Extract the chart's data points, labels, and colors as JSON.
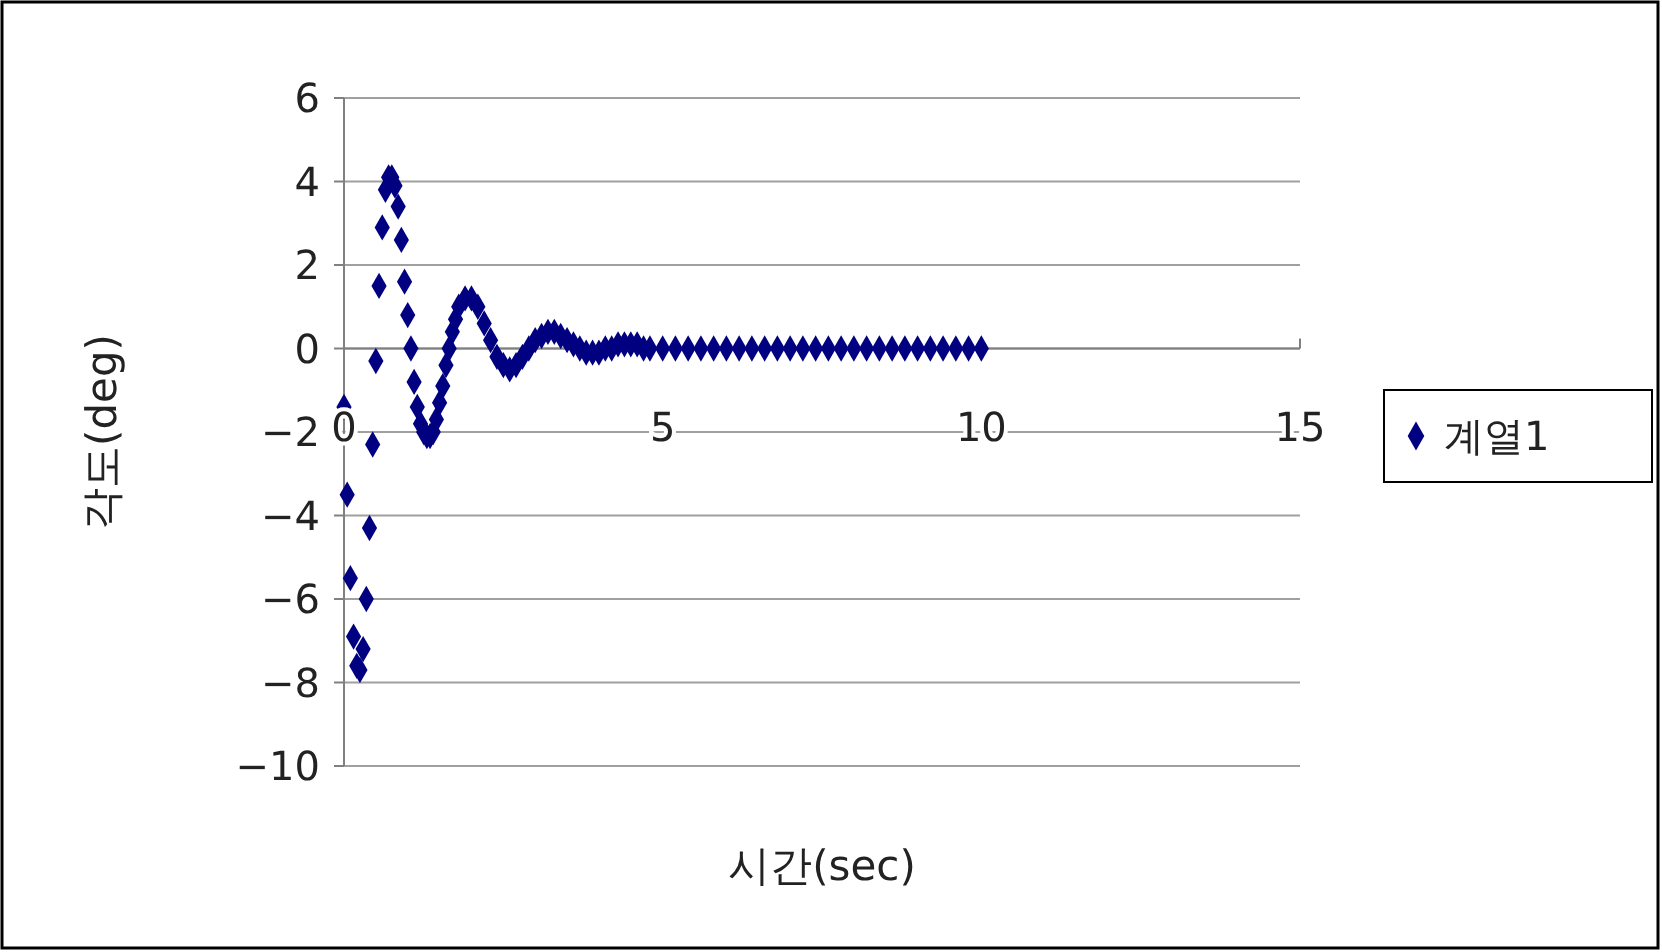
{
  "chart_data": {
    "type": "scatter",
    "xlabel": "시간(sec)",
    "ylabel": "각도(deg)",
    "xlim": [
      0,
      15
    ],
    "xticks": [
      0,
      5,
      10,
      15
    ],
    "ylim": [
      -10,
      6
    ],
    "yticks": [
      -10,
      -8,
      -6,
      -4,
      -2,
      0,
      2,
      4,
      6
    ],
    "grid": "y",
    "legend": "right",
    "marker": "diamond",
    "series": [
      {
        "name": "계열1",
        "color": "#000080",
        "x": [
          0,
          0.05,
          0.1,
          0.15,
          0.2,
          0.25,
          0.3,
          0.35,
          0.4,
          0.45,
          0.5,
          0.55,
          0.6,
          0.65,
          0.7,
          0.75,
          0.8,
          0.85,
          0.9,
          0.95,
          1.0,
          1.05,
          1.1,
          1.15,
          1.2,
          1.25,
          1.3,
          1.35,
          1.4,
          1.45,
          1.5,
          1.55,
          1.6,
          1.65,
          1.7,
          1.75,
          1.8,
          1.9,
          2.0,
          2.1,
          2.2,
          2.3,
          2.4,
          2.5,
          2.6,
          2.7,
          2.8,
          2.9,
          3.0,
          3.1,
          3.2,
          3.3,
          3.4,
          3.5,
          3.6,
          3.7,
          3.8,
          3.9,
          4.0,
          4.1,
          4.2,
          4.3,
          4.4,
          4.5,
          4.6,
          4.7,
          4.8,
          5.0,
          5.2,
          5.4,
          5.6,
          5.8,
          6.0,
          6.2,
          6.4,
          6.6,
          6.8,
          7.0,
          7.2,
          7.4,
          7.6,
          7.8,
          8.0,
          8.2,
          8.4,
          8.6,
          8.8,
          9.0,
          9.2,
          9.4,
          9.6,
          9.8,
          10.0
        ],
        "values": [
          -1.4,
          -3.5,
          -5.5,
          -6.9,
          -7.6,
          -7.7,
          -7.2,
          -6.0,
          -4.3,
          -2.3,
          -0.3,
          1.5,
          2.9,
          3.8,
          4.1,
          4.1,
          3.9,
          3.4,
          2.6,
          1.6,
          0.8,
          0.0,
          -0.8,
          -1.4,
          -1.8,
          -2.0,
          -2.1,
          -2.1,
          -2.0,
          -1.7,
          -1.3,
          -0.9,
          -0.4,
          0.0,
          0.4,
          0.7,
          1.0,
          1.2,
          1.2,
          1.0,
          0.6,
          0.2,
          -0.2,
          -0.4,
          -0.5,
          -0.4,
          -0.2,
          0.0,
          0.2,
          0.3,
          0.4,
          0.4,
          0.3,
          0.2,
          0.1,
          0.0,
          -0.1,
          -0.1,
          -0.1,
          0.0,
          0.0,
          0.1,
          0.1,
          0.1,
          0.1,
          0.0,
          0,
          0,
          0,
          0,
          0,
          0,
          0,
          0,
          0,
          0,
          0,
          0,
          0,
          0,
          0,
          0,
          0,
          0,
          0,
          0,
          0,
          0,
          0,
          0,
          0,
          0,
          0
        ]
      }
    ]
  }
}
